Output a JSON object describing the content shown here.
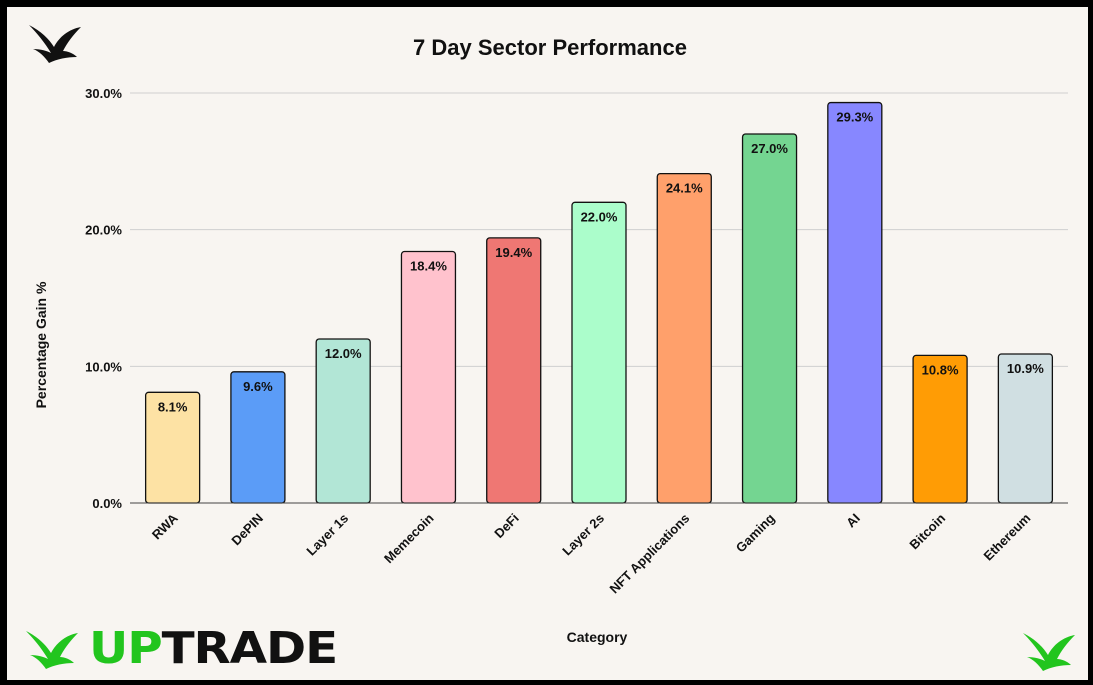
{
  "colors": {
    "accent_green": "#22c51e",
    "background": "#f8f5f1"
  },
  "brand": {
    "name_part1": "UP",
    "name_part2": "TRADE",
    "logo_icons": [
      "bird-logo-icon"
    ]
  },
  "chart_data": {
    "type": "bar",
    "title": "7 Day Sector Performance",
    "xlabel": "Category",
    "ylabel": "Percentage Gain %",
    "ylim": [
      0,
      30
    ],
    "yticks": [
      "0.0%",
      "10.0%",
      "20.0%",
      "30.0%"
    ],
    "grid": true,
    "legend": "none",
    "categories": [
      "RWA",
      "DePIN",
      "Layer 1s",
      "Memecoin",
      "DeFi",
      "Layer 2s",
      "NFT Applications",
      "Gaming",
      "AI",
      "Bitcoin",
      "Ethereum"
    ],
    "values": [
      8.1,
      9.6,
      12.0,
      18.4,
      19.4,
      22.0,
      24.1,
      27.0,
      29.3,
      10.8,
      10.9
    ],
    "data_labels": [
      "8.1%",
      "9.6%",
      "12.0%",
      "18.4%",
      "19.4%",
      "22.0%",
      "24.1%",
      "27.0%",
      "29.3%",
      "10.8%",
      "10.9%"
    ],
    "bar_colors": [
      "#fde2a4",
      "#5b9cf7",
      "#b2e6d6",
      "#ffc2cd",
      "#ef7773",
      "#abfdcb",
      "#ffa06b",
      "#74d591",
      "#8787ff",
      "#ff9c05",
      "#d0dfe2"
    ]
  }
}
